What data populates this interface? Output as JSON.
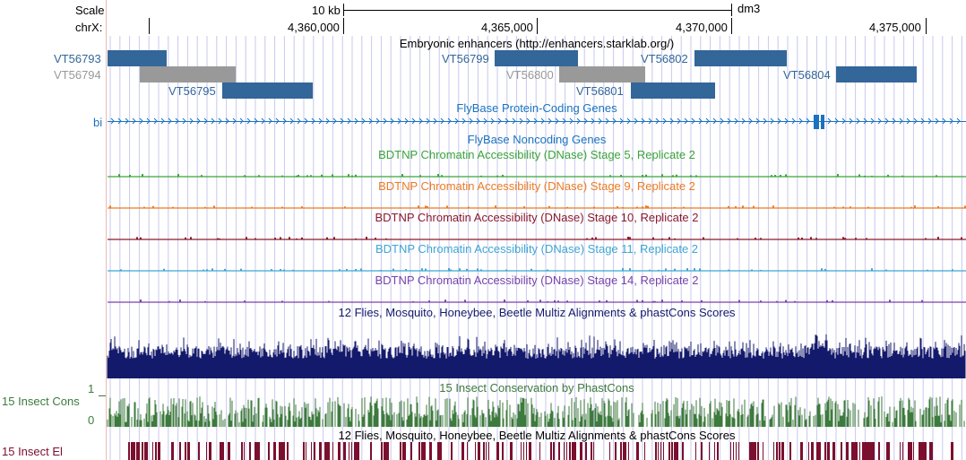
{
  "browser": {
    "assembly": "dm3",
    "scale_label": "Scale",
    "scale_value": "10 kb",
    "chrom_label": "chrX:",
    "positions": [
      "4,360,000",
      "4,365,000",
      "4,370,000",
      "4,375,000"
    ]
  },
  "colors": {
    "enhancer": "#336699",
    "enhancer_gray": "#999999",
    "flybase": "#1a72c0",
    "stage5": "#3aa43a",
    "stage9": "#ee7b22",
    "stage10": "#8b1a2b",
    "stage11": "#3ea6d4",
    "stage14": "#7744aa",
    "multiz": "#141a6b",
    "insect_cons": "#3d7a3d",
    "insect_el": "#7a0f2e",
    "grid": "#c8c8ee"
  },
  "tracks": {
    "enhancers": {
      "title": "Embryonic enhancers (http://enhancers.starklab.org/)",
      "features": [
        {
          "name": "VT56793",
          "gray": false
        },
        {
          "name": "VT56794",
          "gray": true
        },
        {
          "name": "VT56795",
          "gray": false
        },
        {
          "name": "VT56799",
          "gray": false
        },
        {
          "name": "VT56800",
          "gray": true
        },
        {
          "name": "VT56801",
          "gray": false
        },
        {
          "name": "VT56802",
          "gray": false
        },
        {
          "name": "VT56804",
          "gray": false
        }
      ]
    },
    "protein_coding": {
      "title": "FlyBase Protein-Coding Genes",
      "gene_label": "bi"
    },
    "noncoding": {
      "title": "FlyBase Noncoding Genes"
    },
    "dnase_stage5": {
      "title": "BDTNP Chromatin Accessibility (DNase) Stage 5, Replicate 2"
    },
    "dnase_stage9": {
      "title": "BDTNP Chromatin Accessibility (DNase) Stage 9, Replicate 2"
    },
    "dnase_stage10": {
      "title": "BDTNP Chromatin Accessibility (DNase) Stage 10, Replicate 2"
    },
    "dnase_stage11": {
      "title": "BDTNP Chromatin Accessibility (DNase) Stage 11, Replicate 2"
    },
    "dnase_stage14": {
      "title": "BDTNP Chromatin Accessibility (DNase) Stage 14, Replicate 2"
    },
    "multiz": {
      "title": "12 Flies, Mosquito, Honeybee, Beetle Multiz Alignments & phastCons Scores"
    },
    "insect_cons": {
      "title": "15 Insect Conservation by PhastCons",
      "left_label": "15 Insect Cons",
      "scale_max": "1",
      "scale_min": "0"
    },
    "multiz2": {
      "title": "12 Flies, Mosquito, Honeybee, Beetle Multiz Alignments & phastCons Scores"
    },
    "insect_el": {
      "left_label": "15 Insect El"
    }
  }
}
